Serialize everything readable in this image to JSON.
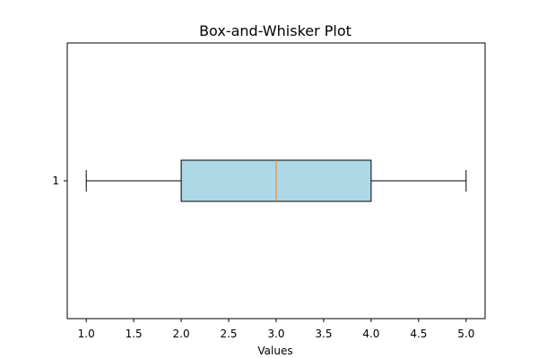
{
  "chart_data": {
    "type": "box",
    "title": "Box-and-Whisker Plot",
    "xlabel": "Values",
    "ylabel": "",
    "orientation": "horizontal",
    "xlim": [
      0.8,
      5.2
    ],
    "x_ticks": [
      "1.0",
      "1.5",
      "2.0",
      "2.5",
      "3.0",
      "3.5",
      "4.0",
      "4.5",
      "5.0"
    ],
    "y_ticks": [
      "1"
    ],
    "grid": false,
    "series": [
      {
        "category": "1",
        "whisker_low": 1.0,
        "q1": 2.0,
        "median": 3.0,
        "q3": 4.0,
        "whisker_high": 5.0
      }
    ],
    "colors": {
      "box_fill": "#add8e6",
      "box_edge": "#000000",
      "median": "#ff7f0e",
      "whisker": "#000000"
    }
  }
}
